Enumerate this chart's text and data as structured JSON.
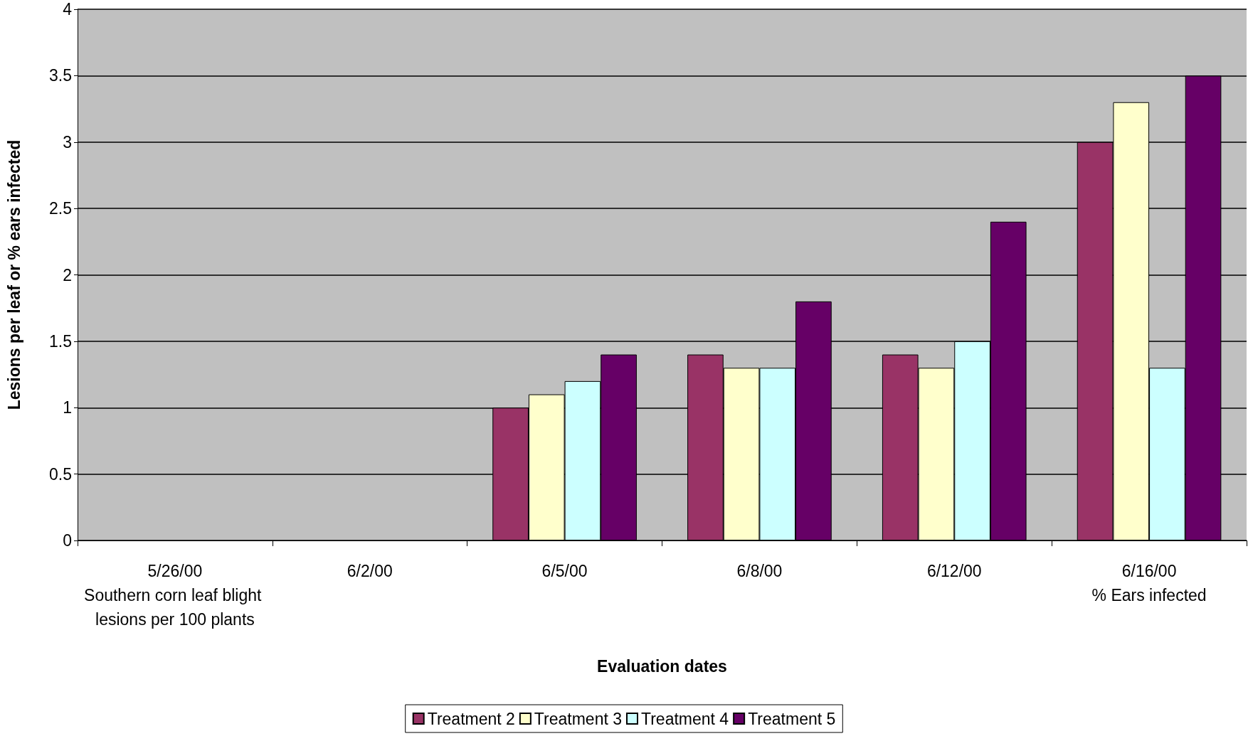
{
  "chart_data": {
    "type": "bar",
    "xlabel": "Evaluation dates",
    "ylabel": "Lesions per leaf or % ears infected",
    "categories": [
      "5/26/00\nSouthern corn leaf blight lesions per 100 plants",
      "6/2/00",
      "6/5/00",
      "6/8/00",
      "6/12/00",
      "6/16/00\n% Ears infected"
    ],
    "series": [
      {
        "name": "Treatment 2",
        "color": "#993366",
        "values": [
          null,
          null,
          1.0,
          1.4,
          1.4,
          3.0
        ]
      },
      {
        "name": "Treatment 3",
        "color": "#ffffcc",
        "values": [
          null,
          null,
          1.1,
          1.3,
          1.3,
          3.3
        ]
      },
      {
        "name": "Treatment 4",
        "color": "#ccffff",
        "values": [
          null,
          null,
          1.2,
          1.3,
          1.5,
          1.3
        ]
      },
      {
        "name": "Treatment 5",
        "color": "#660066",
        "values": [
          null,
          null,
          1.4,
          1.8,
          2.4,
          3.5
        ]
      }
    ],
    "ylim": [
      0,
      4
    ],
    "yticks": [
      0,
      0.5,
      1,
      1.5,
      2,
      2.5,
      3,
      3.5,
      4
    ],
    "grid": "y",
    "legend": "bottom"
  }
}
